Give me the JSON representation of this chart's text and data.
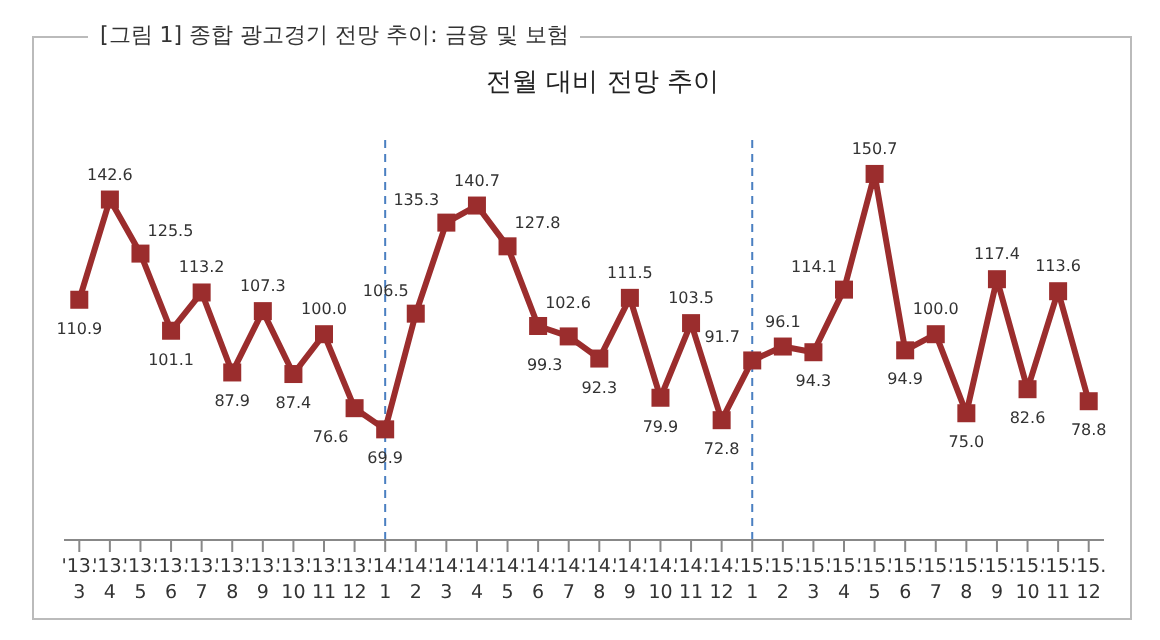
{
  "chart_data": {
    "type": "line",
    "title": "[그림 1] 종합 광고경기 전망 추이: 금융 및 보험",
    "subtitle": "전월 대비 전망 추이",
    "categories": [
      "'13.\n3",
      "'13.\n4",
      "'13.\n5",
      "'13.\n6",
      "'13.\n7",
      "'13.\n8",
      "'13.\n9",
      "'13.\n10",
      "'13.\n11",
      "'13.\n12",
      "'14.\n1",
      "'14.\n2",
      "'14.\n3",
      "'14.\n4",
      "'14.\n5",
      "'14.\n6",
      "'14.\n7",
      "'14.\n8",
      "'14.\n9",
      "'14.\n10",
      "'14.\n11",
      "'14.\n12",
      "'15.\n1",
      "'15.\n2",
      "'15.\n3",
      "'15.\n4",
      "'15.\n5",
      "'15.\n6",
      "'15.\n7",
      "'15.\n8",
      "'15.\n9",
      "'15.\n10",
      "'15.\n11",
      "'15.\n12"
    ],
    "series": [
      {
        "color": "#9b2d2d",
        "values": [
          110.9,
          142.6,
          125.5,
          101.1,
          113.2,
          87.9,
          107.3,
          87.4,
          100.0,
          76.6,
          69.9,
          106.5,
          135.3,
          140.7,
          127.8,
          102.6,
          99.3,
          92.3,
          111.5,
          79.9,
          103.5,
          72.8,
          91.7,
          96.1,
          94.3,
          114.1,
          150.7,
          94.9,
          100.0,
          75.0,
          117.4,
          82.6,
          113.6,
          78.8
        ],
        "value_labels": [
          "110.9",
          "142.6",
          "125.5",
          "101.1",
          "113.2",
          "87.9",
          "107.3",
          "87.4",
          "100.0",
          "76.6",
          "69.9",
          "106.5",
          "135.3",
          "140.7",
          "127.8",
          "102.6",
          "99.3",
          "92.3",
          "111.5",
          "79.9",
          "103.5",
          "72.8",
          "91.7",
          "96.1",
          "94.3",
          "114.1",
          "150.7",
          "94.9",
          "100.0",
          "75.0",
          "117.4",
          "82.6",
          "113.6",
          "78.8"
        ]
      }
    ],
    "marker": "square",
    "tick_labels": "x",
    "ref_lines": [
      {
        "axis": "x",
        "value": "'14.\n1",
        "color": "#4a7fc1",
        "line_style": "dashed"
      },
      {
        "axis": "x",
        "value": "'15.\n1",
        "color": "#4a7fc1",
        "line_style": "dashed"
      }
    ]
  }
}
